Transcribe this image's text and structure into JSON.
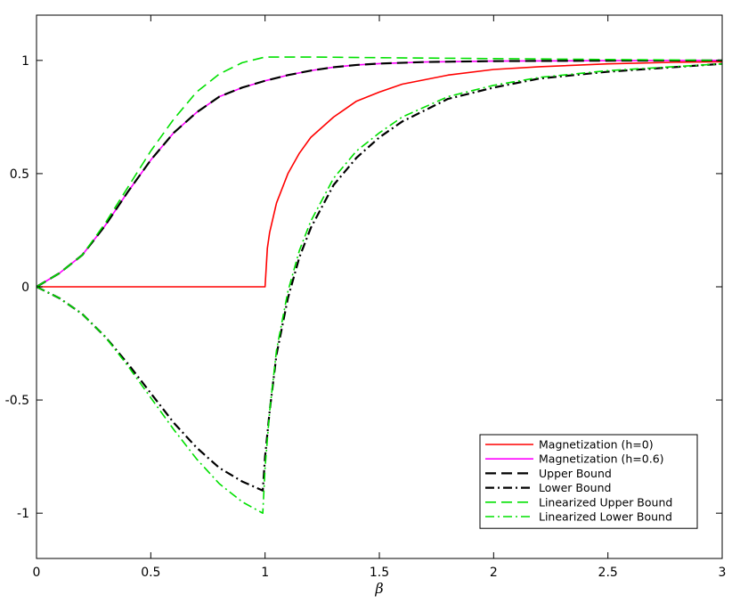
{
  "chart_data": {
    "type": "line",
    "title": "",
    "xlabel": "β",
    "ylabel": "",
    "xlim": [
      0,
      3
    ],
    "ylim": [
      -1.2,
      1.2
    ],
    "grid": false,
    "legend_position": "bottom-right",
    "x_ticks": [
      0,
      0.5,
      1,
      1.5,
      2,
      2.5,
      3
    ],
    "x_tick_labels": [
      "0",
      "0.5",
      "1",
      "1.5",
      "2",
      "2.5",
      "3"
    ],
    "y_ticks": [
      1,
      0.5,
      0,
      -0.5,
      -1
    ],
    "y_tick_labels": [
      "1",
      "0.5",
      "0",
      "-0.5",
      "-1"
    ],
    "series": [
      {
        "name": "Magnetization (h=0)",
        "color": "#ff0000",
        "dash": "solid",
        "width": 1.6,
        "x": [
          0,
          0.5,
          0.99,
          1.0,
          1.01,
          1.02,
          1.05,
          1.1,
          1.15,
          1.2,
          1.3,
          1.4,
          1.5,
          1.6,
          1.8,
          2.0,
          2.2,
          2.5,
          2.8,
          3.0
        ],
        "y": [
          0,
          0,
          0,
          0,
          0.17,
          0.24,
          0.37,
          0.5,
          0.59,
          0.66,
          0.75,
          0.82,
          0.86,
          0.895,
          0.935,
          0.96,
          0.972,
          0.985,
          0.992,
          0.994
        ]
      },
      {
        "name": "Magnetization (h=0.6)",
        "color": "#ff00ff",
        "dash": "solid",
        "width": 1.6,
        "x": [
          0,
          0.1,
          0.2,
          0.3,
          0.4,
          0.5,
          0.6,
          0.7,
          0.8,
          0.9,
          1.0,
          1.1,
          1.2,
          1.3,
          1.4,
          1.5,
          1.7,
          2.0,
          2.5,
          3.0
        ],
        "y": [
          0,
          0.06,
          0.14,
          0.27,
          0.42,
          0.56,
          0.68,
          0.77,
          0.84,
          0.88,
          0.91,
          0.935,
          0.955,
          0.97,
          0.98,
          0.986,
          0.993,
          0.997,
          0.999,
          1.0
        ]
      },
      {
        "name": "Upper Bound",
        "color": "#000000",
        "dash": "dashed",
        "width": 2.2,
        "x": [
          0,
          0.1,
          0.2,
          0.3,
          0.4,
          0.5,
          0.6,
          0.7,
          0.8,
          0.9,
          1.0,
          1.1,
          1.2,
          1.3,
          1.4,
          1.5,
          1.7,
          2.0,
          2.5,
          3.0
        ],
        "y": [
          0,
          0.06,
          0.14,
          0.27,
          0.42,
          0.56,
          0.68,
          0.77,
          0.84,
          0.88,
          0.91,
          0.935,
          0.955,
          0.97,
          0.98,
          0.986,
          0.993,
          0.997,
          0.999,
          1.0
        ]
      },
      {
        "name": "Lower Bound",
        "color": "#000000",
        "dash": "dashdot",
        "width": 2.2,
        "x": [
          0,
          0.1,
          0.2,
          0.3,
          0.4,
          0.5,
          0.6,
          0.7,
          0.8,
          0.9,
          0.99,
          1.0,
          1.02,
          1.05,
          1.1,
          1.15,
          1.2,
          1.3,
          1.4,
          1.5,
          1.6,
          1.8,
          2.0,
          2.2,
          2.5,
          3.0
        ],
        "y": [
          0,
          -0.05,
          -0.12,
          -0.22,
          -0.34,
          -0.47,
          -0.6,
          -0.71,
          -0.8,
          -0.86,
          -0.9,
          -0.75,
          -0.55,
          -0.3,
          -0.05,
          0.13,
          0.26,
          0.45,
          0.57,
          0.66,
          0.73,
          0.83,
          0.88,
          0.92,
          0.95,
          0.985
        ]
      },
      {
        "name": "Linearized Upper Bound",
        "color": "#00e000",
        "dash": "dashed",
        "width": 1.6,
        "x": [
          0,
          0.1,
          0.2,
          0.3,
          0.4,
          0.5,
          0.6,
          0.7,
          0.8,
          0.9,
          1.0,
          1.2,
          1.5,
          2.0,
          2.5,
          3.0
        ],
        "y": [
          0,
          0.06,
          0.14,
          0.28,
          0.44,
          0.6,
          0.74,
          0.86,
          0.94,
          0.99,
          1.015,
          1.015,
          1.012,
          1.008,
          1.004,
          1.0
        ]
      },
      {
        "name": "Linearized Lower Bound",
        "color": "#00e000",
        "dash": "dashdot",
        "width": 1.6,
        "x": [
          0,
          0.1,
          0.2,
          0.3,
          0.4,
          0.5,
          0.6,
          0.7,
          0.8,
          0.9,
          0.99,
          1.0,
          1.02,
          1.05,
          1.1,
          1.15,
          1.2,
          1.3,
          1.4,
          1.5,
          1.6,
          1.8,
          2.0,
          2.2,
          2.5,
          3.0
        ],
        "y": [
          0,
          -0.05,
          -0.12,
          -0.22,
          -0.35,
          -0.49,
          -0.63,
          -0.76,
          -0.87,
          -0.95,
          -1.0,
          -0.8,
          -0.55,
          -0.28,
          -0.02,
          0.16,
          0.29,
          0.48,
          0.6,
          0.68,
          0.75,
          0.84,
          0.89,
          0.925,
          0.955,
          0.985
        ]
      }
    ]
  }
}
